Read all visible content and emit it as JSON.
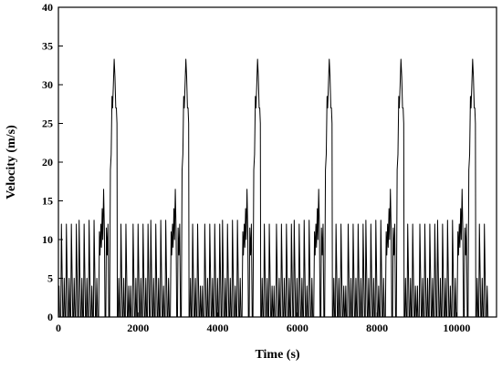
{
  "chart_data": {
    "type": "line",
    "xlabel": "Time (s)",
    "ylabel": "Velocity (m/s)",
    "xlim": [
      0,
      11000
    ],
    "ylim": [
      0,
      40
    ],
    "xticks": [
      0,
      2000,
      4000,
      6000,
      8000,
      10000
    ],
    "yticks": [
      0,
      5,
      10,
      15,
      20,
      25,
      30,
      35,
      40
    ],
    "grid": false,
    "line_color": "#000000",
    "cycle_period": 1800,
    "cycle_count": 6,
    "cycle_profile": [
      [
        0,
        0
      ],
      [
        15,
        4
      ],
      [
        30,
        0
      ],
      [
        60,
        0
      ],
      [
        75,
        12
      ],
      [
        110,
        0
      ],
      [
        130,
        0
      ],
      [
        145,
        5
      ],
      [
        165,
        0
      ],
      [
        185,
        0
      ],
      [
        200,
        12
      ],
      [
        235,
        0
      ],
      [
        255,
        0
      ],
      [
        270,
        5
      ],
      [
        290,
        0
      ],
      [
        310,
        0
      ],
      [
        325,
        12
      ],
      [
        360,
        0
      ],
      [
        380,
        0
      ],
      [
        395,
        5
      ],
      [
        415,
        0
      ],
      [
        435,
        0
      ],
      [
        450,
        12
      ],
      [
        485,
        0
      ],
      [
        505,
        0
      ],
      [
        520,
        12.5
      ],
      [
        555,
        0
      ],
      [
        575,
        0
      ],
      [
        590,
        5
      ],
      [
        610,
        0
      ],
      [
        630,
        0
      ],
      [
        645,
        12
      ],
      [
        680,
        0
      ],
      [
        700,
        0
      ],
      [
        715,
        5
      ],
      [
        735,
        0
      ],
      [
        755,
        0
      ],
      [
        770,
        12.5
      ],
      [
        805,
        0
      ],
      [
        825,
        0
      ],
      [
        840,
        4
      ],
      [
        860,
        0
      ],
      [
        880,
        0
      ],
      [
        895,
        12.5
      ],
      [
        930,
        0
      ],
      [
        950,
        0
      ],
      [
        965,
        5
      ],
      [
        985,
        0
      ],
      [
        1010,
        0
      ],
      [
        1030,
        11
      ],
      [
        1045,
        8
      ],
      [
        1065,
        12
      ],
      [
        1080,
        9
      ],
      [
        1100,
        14
      ],
      [
        1115,
        10
      ],
      [
        1135,
        16.5
      ],
      [
        1155,
        11
      ],
      [
        1170,
        0
      ],
      [
        1190,
        0
      ],
      [
        1205,
        11.5
      ],
      [
        1225,
        8
      ],
      [
        1245,
        12
      ],
      [
        1265,
        0
      ],
      [
        1285,
        0
      ],
      [
        1305,
        19
      ],
      [
        1325,
        21
      ],
      [
        1345,
        28.5
      ],
      [
        1360,
        27
      ],
      [
        1380,
        30
      ],
      [
        1400,
        33.3
      ],
      [
        1420,
        31
      ],
      [
        1440,
        27
      ],
      [
        1455,
        27
      ],
      [
        1470,
        25
      ],
      [
        1480,
        0
      ],
      [
        1500,
        0
      ],
      [
        1515,
        5
      ],
      [
        1535,
        0
      ],
      [
        1555,
        0
      ],
      [
        1570,
        12
      ],
      [
        1605,
        0
      ],
      [
        1625,
        0
      ],
      [
        1640,
        5
      ],
      [
        1660,
        0
      ],
      [
        1680,
        0
      ],
      [
        1695,
        12
      ],
      [
        1730,
        0
      ],
      [
        1750,
        0
      ],
      [
        1765,
        4
      ],
      [
        1785,
        0
      ],
      [
        1800,
        0
      ]
    ]
  }
}
